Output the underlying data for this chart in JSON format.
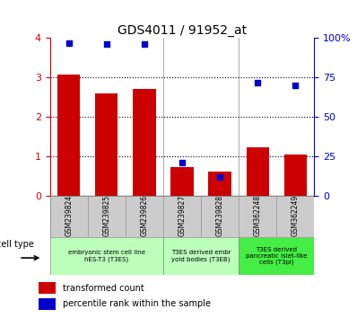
{
  "title": "GDS4011 / 91952_at",
  "samples": [
    "GSM239824",
    "GSM239825",
    "GSM239826",
    "GSM239827",
    "GSM239828",
    "GSM362248",
    "GSM362249"
  ],
  "transformed_count": [
    3.08,
    2.6,
    2.72,
    0.72,
    0.6,
    1.22,
    1.05
  ],
  "percentile_rank": [
    97,
    96,
    96,
    21,
    12,
    72,
    70
  ],
  "bar_color": "#cc0000",
  "dot_color": "#0000cc",
  "ylim_left": [
    0,
    4
  ],
  "ylim_right": [
    0,
    100
  ],
  "yticks_left": [
    0,
    1,
    2,
    3,
    4
  ],
  "yticks_right": [
    0,
    25,
    50,
    75,
    100
  ],
  "yticklabels_right": [
    "0",
    "25",
    "50",
    "75",
    "100%"
  ],
  "group_configs": [
    {
      "start": 0,
      "end": 3,
      "label": "embryonic stem cell line\nhES-T3 (T3ES)",
      "color": "#bbffbb"
    },
    {
      "start": 3,
      "end": 5,
      "label": "T3ES derived embr\nyoid bodies (T3EB)",
      "color": "#bbffbb"
    },
    {
      "start": 5,
      "end": 7,
      "label": "T3ES derived\npancreatic islet-like\ncells (T3pi)",
      "color": "#44ee44"
    }
  ],
  "legend_transformed": "transformed count",
  "legend_percentile": "percentile rank within the sample",
  "cell_type_label": "cell type",
  "bar_color_legend": "#cc0000",
  "dot_color_legend": "#0000cc",
  "tick_color_left": "#cc0000",
  "tick_color_right": "#0000cc",
  "bar_width": 0.6,
  "sample_box_color": "#cccccc",
  "sample_box_edge": "#999999"
}
